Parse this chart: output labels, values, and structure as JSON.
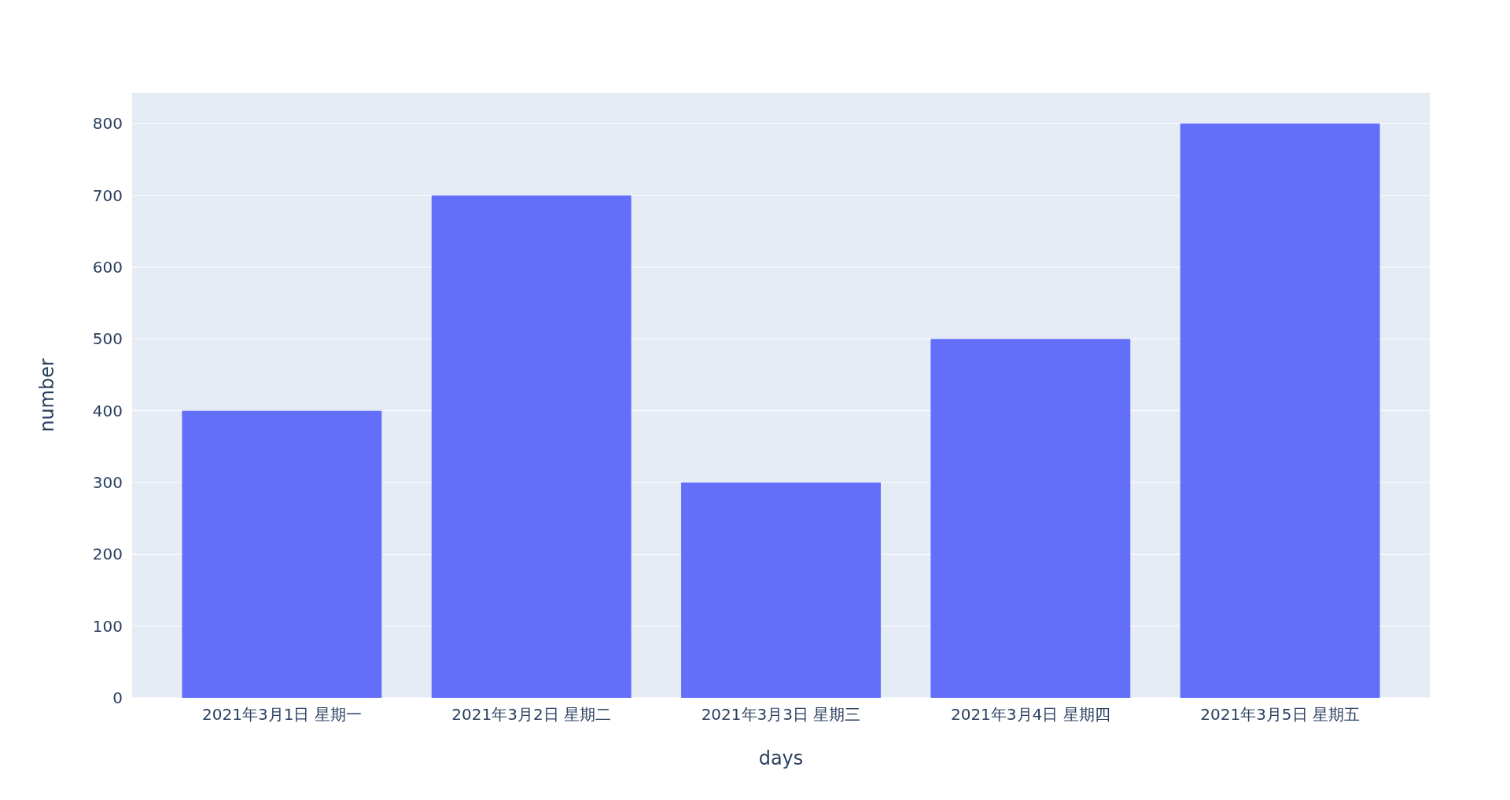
{
  "chart_data": {
    "type": "bar",
    "xlabel": "days",
    "ylabel": "number",
    "categories": [
      "2021年3月1日 星期一",
      "2021年3月2日 星期二",
      "2021年3月3日 星期三",
      "2021年3月4日 星期四",
      "2021年3月5日 星期五"
    ],
    "values": [
      400,
      700,
      300,
      500,
      800
    ],
    "color": "#636efa",
    "ylim": [
      0,
      843
    ],
    "yticks": [
      0,
      100,
      200,
      300,
      400,
      500,
      600,
      700,
      800
    ],
    "grid": "y"
  }
}
